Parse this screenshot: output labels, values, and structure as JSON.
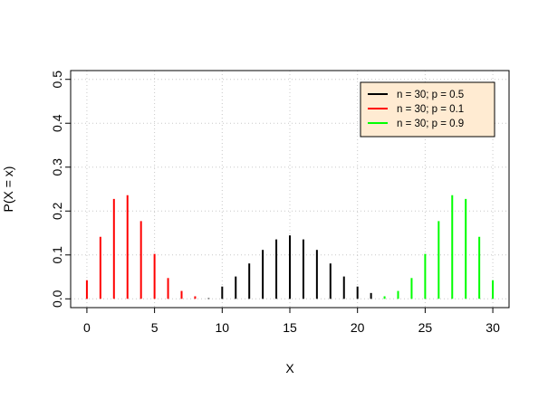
{
  "chart_data": {
    "type": "bar",
    "xlabel": "X",
    "ylabel": "P(X = x)",
    "xlim": [
      -1.2,
      31.2
    ],
    "ylim": [
      -0.02,
      0.52
    ],
    "x_ticks": [
      0,
      5,
      10,
      15,
      20,
      25,
      30
    ],
    "y_ticks": [
      0.0,
      0.1,
      0.2,
      0.3,
      0.4,
      0.5
    ],
    "x_tick_labels": [
      "0",
      "5",
      "10",
      "15",
      "20",
      "25",
      "30"
    ],
    "y_tick_labels": [
      "0.0",
      "0.1",
      "0.2",
      "0.3",
      "0.4",
      "0.5"
    ],
    "grid": true,
    "legend_position": "top-right",
    "legend_background": "#FFEBD2",
    "x": [
      0,
      1,
      2,
      3,
      4,
      5,
      6,
      7,
      8,
      9,
      10,
      11,
      12,
      13,
      14,
      15,
      16,
      17,
      18,
      19,
      20,
      21,
      22,
      23,
      24,
      25,
      26,
      27,
      28,
      29,
      30
    ],
    "series": [
      {
        "name": "n = 30; p = 0.5",
        "color": "#000000",
        "visible_x_range": [
          9,
          21
        ],
        "values": [
          0.0,
          0.0,
          0.0,
          0.0,
          0.0,
          0.0,
          0.0001,
          0.0003,
          0.0015,
          0.0015,
          0.028,
          0.0509,
          0.0806,
          0.1115,
          0.1354,
          0.1445,
          0.1354,
          0.1115,
          0.0806,
          0.0509,
          0.028,
          0.0133,
          0.0055,
          0.0019,
          0.0006,
          0.0001,
          0.0,
          0.0,
          0.0,
          0.0,
          0.0
        ]
      },
      {
        "name": "n = 30; p = 0.1",
        "color": "#FF0000",
        "visible_x_range": [
          0,
          8
        ],
        "values": [
          0.0424,
          0.1413,
          0.2277,
          0.2361,
          0.1771,
          0.1023,
          0.0474,
          0.018,
          0.0058,
          0.0016,
          0.0004,
          0.0001,
          0.0,
          0.0,
          0.0,
          0.0,
          0.0,
          0.0,
          0.0,
          0.0,
          0.0,
          0.0,
          0.0,
          0.0,
          0.0,
          0.0,
          0.0,
          0.0,
          0.0,
          0.0,
          0.0
        ]
      },
      {
        "name": "n = 30; p = 0.9",
        "color": "#00FF00",
        "visible_x_range": [
          22,
          30
        ],
        "values": [
          0.0,
          0.0,
          0.0,
          0.0,
          0.0,
          0.0,
          0.0,
          0.0,
          0.0,
          0.0,
          0.0,
          0.0,
          0.0,
          0.0,
          0.0,
          0.0,
          0.0,
          0.0,
          0.0001,
          0.0004,
          0.0016,
          0.0058,
          0.0058,
          0.018,
          0.0474,
          0.1023,
          0.1771,
          0.2361,
          0.2277,
          0.1413,
          0.0424
        ]
      }
    ]
  }
}
